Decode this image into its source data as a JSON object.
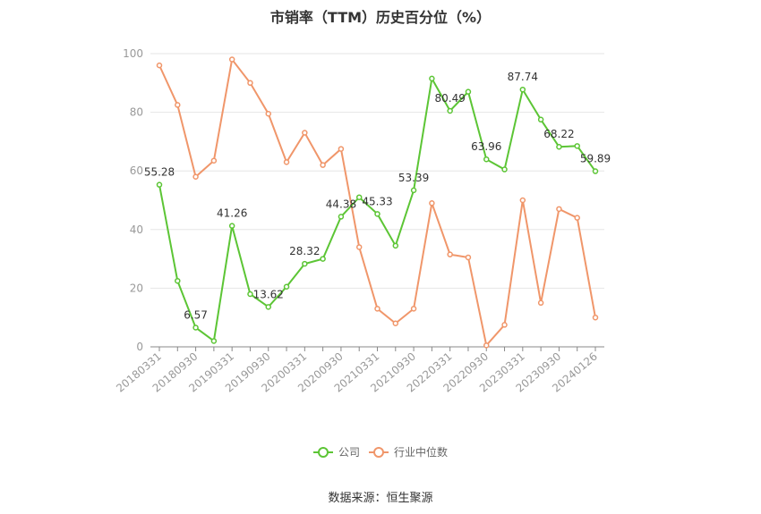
{
  "chart_data": {
    "type": "line",
    "title": "市销率（TTM）历史百分位（%）",
    "source": "数据来源：恒生聚源",
    "xlabel": "",
    "ylabel": "",
    "ylim": [
      0,
      100
    ],
    "yticks": [
      0,
      20,
      40,
      60,
      80,
      100
    ],
    "grid": true,
    "legend": "bottom-center",
    "x": [
      "20180331",
      "20180630",
      "20180930",
      "20181231",
      "20190331",
      "20190630",
      "20190930",
      "20191231",
      "20200331",
      "20200630",
      "20200930",
      "20201231",
      "20210331",
      "20210630",
      "20210930",
      "20211231",
      "20220331",
      "20220630",
      "20220930",
      "20221231",
      "20230331",
      "20230630",
      "20230930",
      "20231231",
      "20240126"
    ],
    "xticks": [
      "20180331",
      "20180930",
      "20190331",
      "20190930",
      "20200331",
      "20200930",
      "20210331",
      "20210930",
      "20220331",
      "20220930",
      "20230331",
      "20230930",
      "20240126"
    ],
    "series": [
      {
        "name": "公司",
        "color": "#5cc535",
        "values": [
          55.28,
          22.5,
          6.57,
          2.0,
          41.26,
          18.0,
          13.62,
          20.5,
          28.32,
          30.0,
          44.38,
          51.0,
          45.33,
          34.5,
          53.39,
          91.5,
          80.49,
          87.0,
          63.96,
          60.5,
          87.74,
          77.5,
          68.22,
          68.5,
          59.89
        ],
        "labels": {
          "0": "55.28",
          "2": "6.57",
          "4": "41.26",
          "6": "13.62",
          "8": "28.32",
          "10": "44.38",
          "12": "45.33",
          "14": "53.39",
          "16": "80.49",
          "18": "63.96",
          "20": "87.74",
          "22": "68.22",
          "24": "59.89"
        }
      },
      {
        "name": "行业中位数",
        "color": "#f0966a",
        "values": [
          96.0,
          82.5,
          58.0,
          63.5,
          98.0,
          90.0,
          79.5,
          63.0,
          73.0,
          62.0,
          67.5,
          34.0,
          13.0,
          8.0,
          13.0,
          49.0,
          31.5,
          30.5,
          0.5,
          7.5,
          50.0,
          15.0,
          47.0,
          44.0,
          10.0
        ]
      }
    ]
  }
}
